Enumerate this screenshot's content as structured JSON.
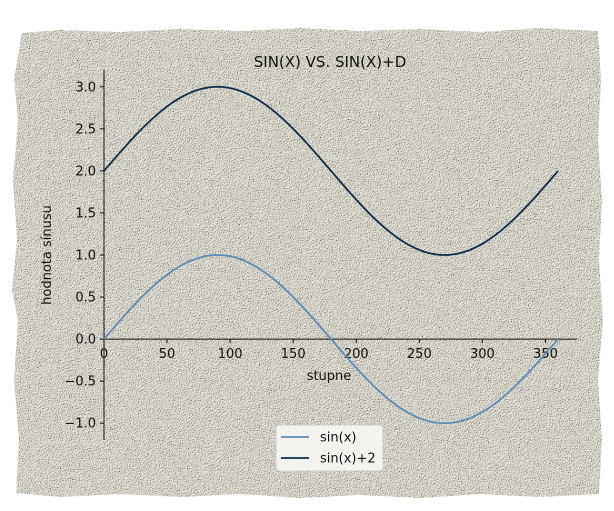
{
  "chart_data": {
    "type": "line",
    "title": "SIN(X) VS. SIN(X)+D",
    "xlabel": "stupne",
    "ylabel": "hodnota sínusu",
    "xlim": [
      0,
      375
    ],
    "ylim": [
      -1.2,
      3.2
    ],
    "xticks": [
      0,
      50,
      100,
      150,
      200,
      250,
      300,
      350
    ],
    "yticks": [
      -1.0,
      -0.5,
      0.0,
      0.5,
      1.0,
      1.5,
      2.0,
      2.5,
      3.0
    ],
    "x_range": [
      0,
      360
    ],
    "series": [
      {
        "name": "sin(x)",
        "formula": "sin(x)",
        "offset": 0,
        "color": "#5b8db8"
      },
      {
        "name": "sin(x)+2",
        "formula": "sin(x)+2",
        "offset": 2,
        "color": "#0d2e4a"
      }
    ],
    "grid": false,
    "legend": "bottom-center",
    "background": "textured paper"
  }
}
